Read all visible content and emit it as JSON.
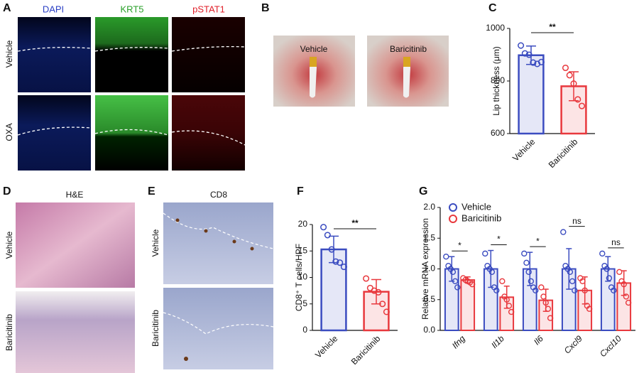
{
  "panels": {
    "A": "A",
    "B": "B",
    "C": "C",
    "D": "D",
    "E": "E",
    "F": "F",
    "G": "G"
  },
  "panel_a": {
    "columns": [
      "DAPI",
      "KRT5",
      "pSTAT1"
    ],
    "rows": [
      "Vehicle",
      "OXA"
    ]
  },
  "panel_b": {
    "labels": [
      "Vehicle",
      "Baricitinib"
    ]
  },
  "panel_d": {
    "title": "H&E",
    "rows": [
      "Vehicle",
      "Baricitinib"
    ]
  },
  "panel_e": {
    "title": "CD8",
    "rows": [
      "Vehicle",
      "Baricitinib"
    ]
  },
  "chart_data": [
    {
      "type": "bar",
      "ylabel": "Lip thickness (μm)",
      "categories": [
        "Vehicle",
        "Baricitinib"
      ],
      "values": [
        898,
        780
      ],
      "errors": [
        35,
        55
      ],
      "colors": [
        "#3b4cc0",
        "#e8383d"
      ],
      "points": [
        [
          935,
          905,
          900,
          870,
          865,
          872
        ],
        [
          850,
          822,
          790,
          730,
          705
        ]
      ],
      "ylim": [
        600,
        1000
      ],
      "yticks": [
        600,
        800,
        1000
      ],
      "significance": "**"
    },
    {
      "type": "bar",
      "ylabel": "CD8⁺ T cells/HPF",
      "categories": [
        "Vehicle",
        "Baricitinib"
      ],
      "values": [
        15.3,
        7.3
      ],
      "errors": [
        2.5,
        2.3
      ],
      "colors": [
        "#3b4cc0",
        "#e8383d"
      ],
      "points": [
        [
          19.5,
          18.0,
          15.3,
          13.0,
          12.8,
          12.0
        ],
        [
          9.8,
          8.0,
          7.5,
          7.2,
          5.0,
          3.5
        ]
      ],
      "ylim": [
        0,
        20
      ],
      "yticks": [
        0,
        5,
        10,
        15,
        20
      ],
      "significance": "**"
    },
    {
      "type": "bar",
      "ylabel": "Relative mRNA expression",
      "categories": [
        "Ifng",
        "Il1b",
        "Il6",
        "Cxcl9",
        "Cxcl10"
      ],
      "series": [
        {
          "name": "Vehicle",
          "color": "#3b4cc0",
          "values": [
            1.0,
            1.0,
            1.0,
            1.0,
            1.0
          ],
          "errors": [
            0.2,
            0.3,
            0.27,
            0.33,
            0.2
          ],
          "points": [
            [
              1.2,
              1.05,
              1.0,
              0.95,
              0.8,
              0.7
            ],
            [
              1.25,
              1.05,
              1.0,
              0.95,
              0.7,
              0.65
            ],
            [
              1.25,
              1.1,
              0.95,
              0.8,
              0.7,
              0.65
            ],
            [
              1.6,
              1.05,
              1.0,
              0.95,
              0.8,
              0.65
            ],
            [
              1.25,
              1.05,
              1.0,
              0.85,
              0.7,
              0.65
            ]
          ]
        },
        {
          "name": "Baricitinib",
          "color": "#e8383d",
          "values": [
            0.82,
            0.54,
            0.49,
            0.65,
            0.77
          ],
          "errors": [
            0.05,
            0.18,
            0.18,
            0.22,
            0.2
          ],
          "points": [
            [
              0.85,
              0.82,
              0.8,
              0.78,
              0.75
            ],
            [
              0.8,
              0.55,
              0.5,
              0.4,
              0.3
            ],
            [
              0.7,
              0.55,
              0.45,
              0.35,
              0.2
            ],
            [
              0.85,
              0.8,
              0.65,
              0.4,
              0.35
            ],
            [
              0.95,
              0.8,
              0.75,
              0.55,
              0.45
            ]
          ]
        }
      ],
      "ylim": [
        0,
        2.0
      ],
      "yticks": [
        {
          "value": 0,
          "label": "0.0"
        },
        {
          "value": 0.5,
          "label": "0.5"
        },
        {
          "value": 1.0,
          "label": "1.0"
        },
        {
          "value": 1.5,
          "label": "1.5"
        },
        {
          "value": 2.0,
          "label": "2.0"
        }
      ],
      "significance": [
        "*",
        "*",
        "*",
        "ns",
        "ns"
      ]
    }
  ]
}
